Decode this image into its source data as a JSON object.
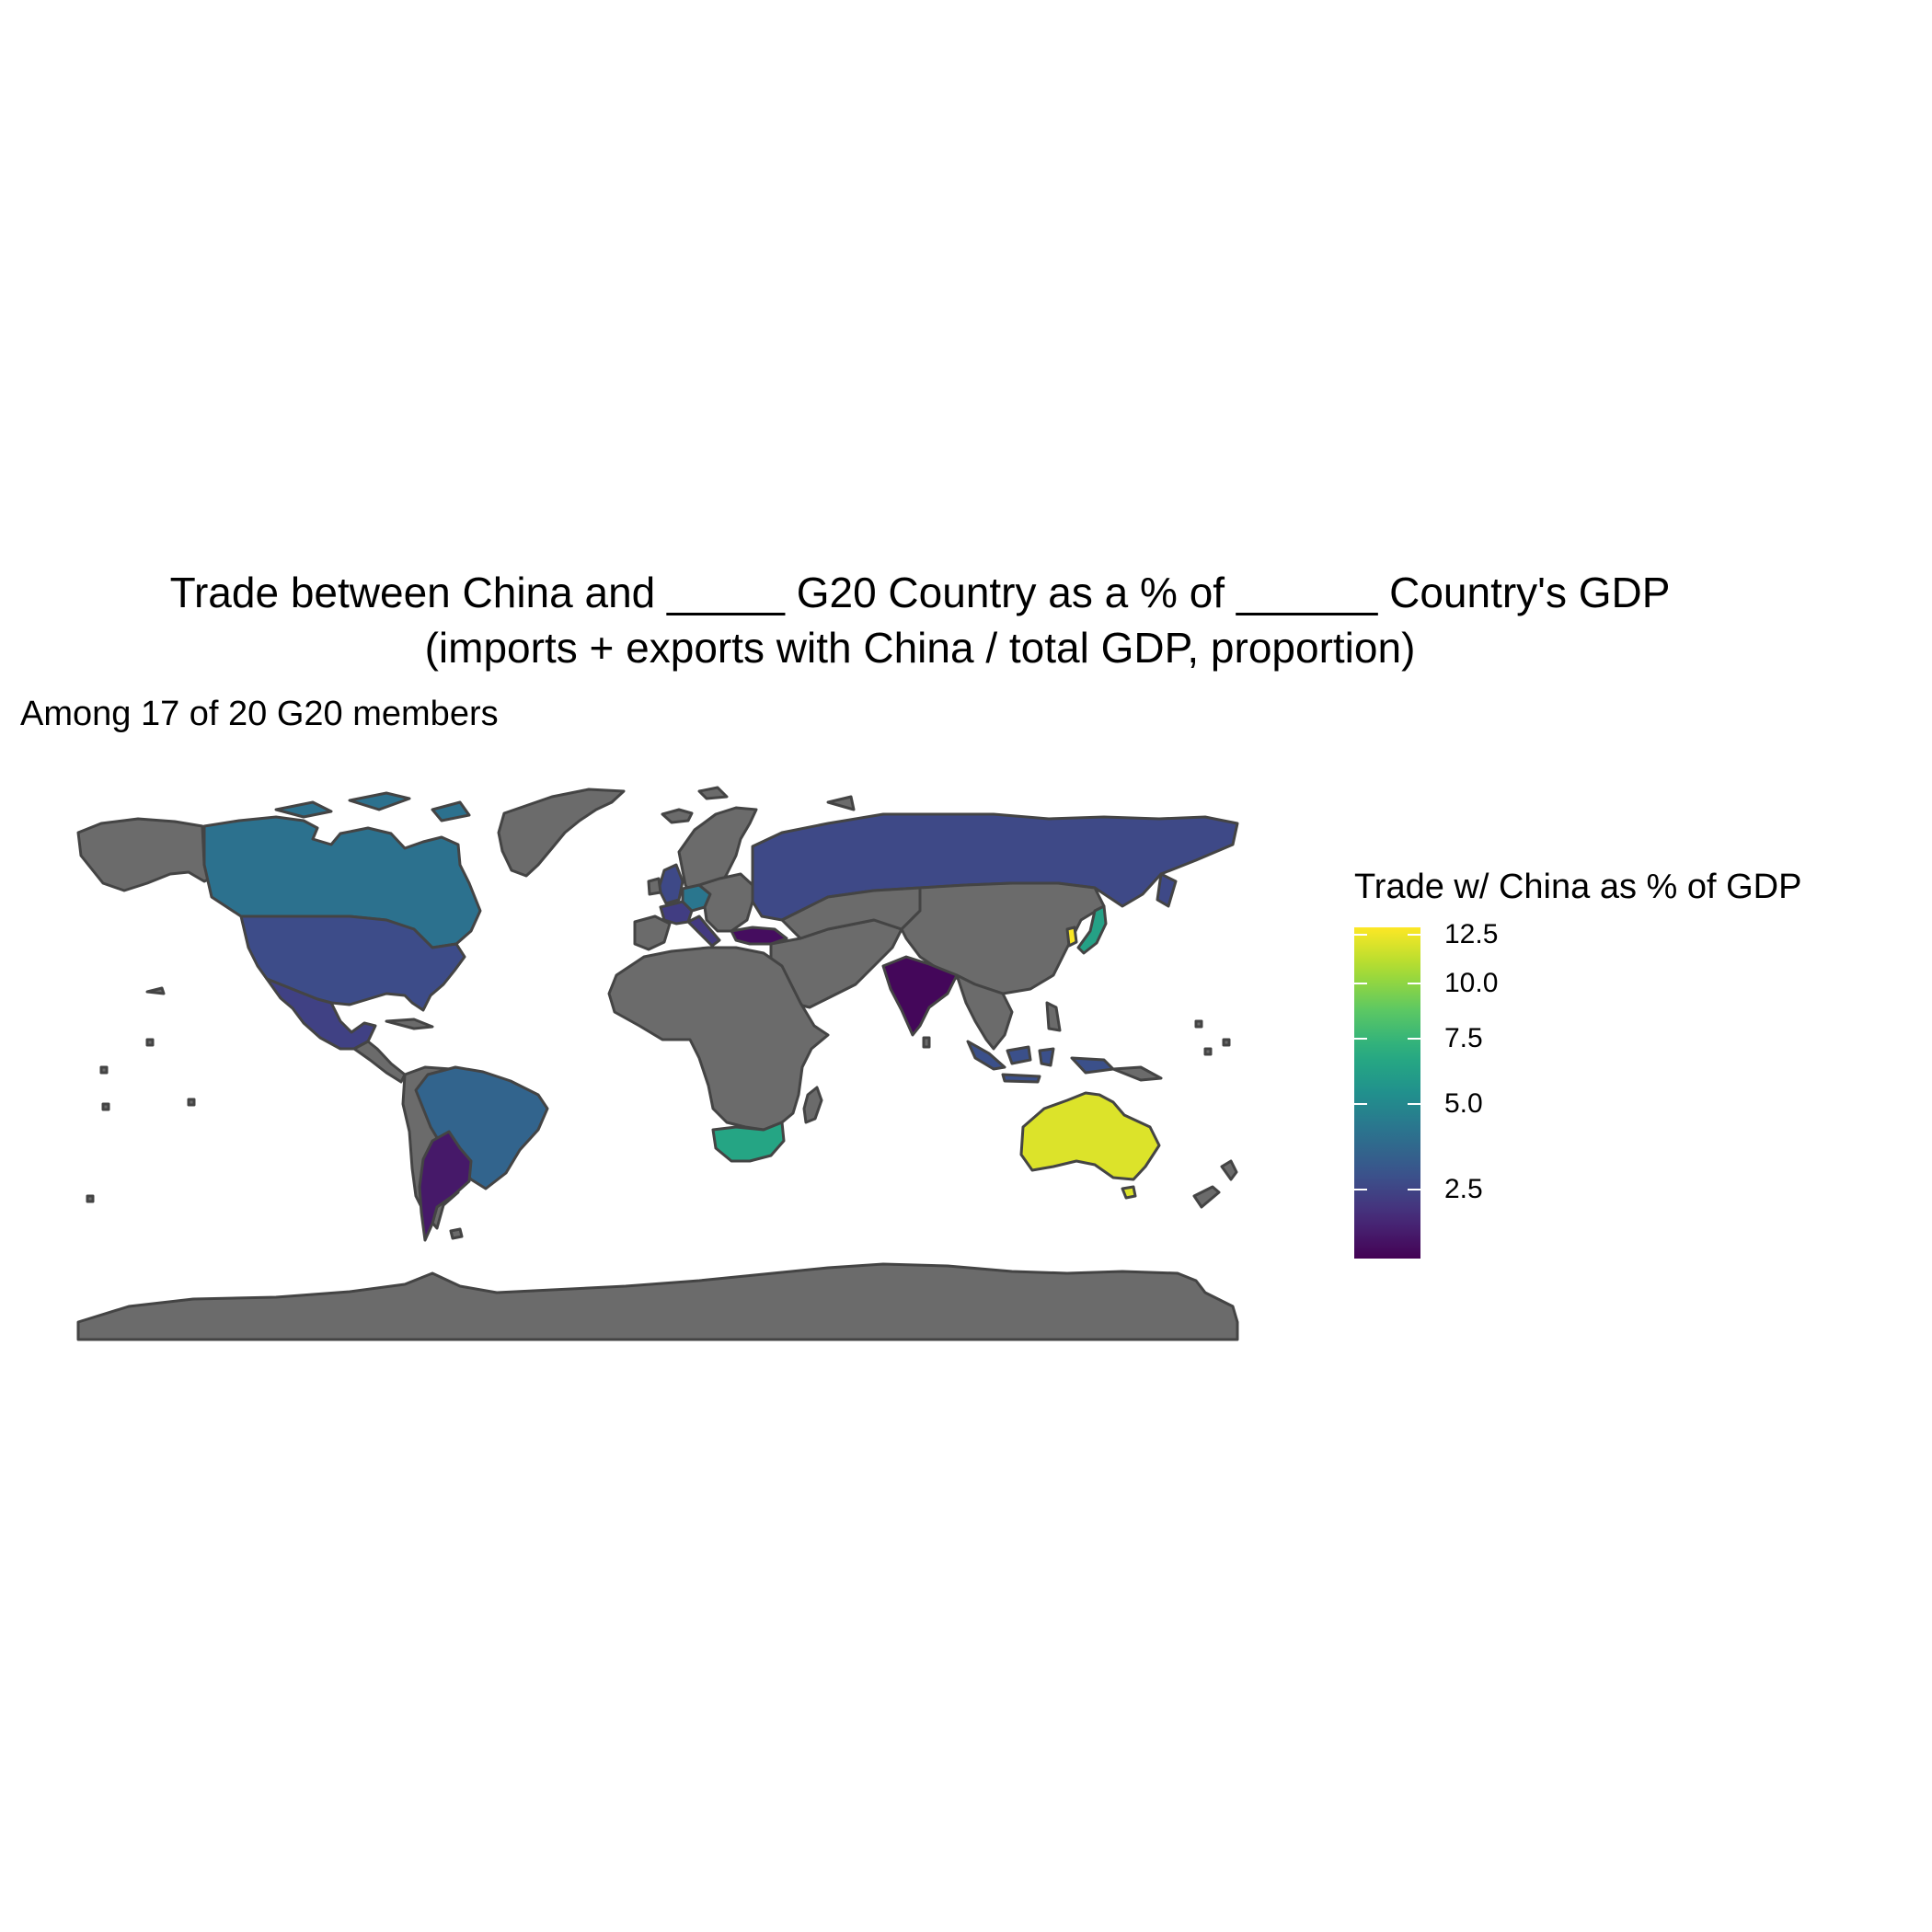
{
  "title_line1": "Trade between China and _____ G20 Country as a % of ______ Country's GDP",
  "title_line2": "(imports + exports with China / total GDP, proportion)",
  "subtitle": "Among 17 of 20 G20 members",
  "legend": {
    "title": "Trade w/ China as % of GDP",
    "range": [
      1.1,
      12.9
    ],
    "ticks": [
      {
        "value": 2.5,
        "label": "2.5"
      },
      {
        "value": 5.0,
        "label": "5.0"
      },
      {
        "value": 7.5,
        "label": "7.5"
      },
      {
        "value": 10.0,
        "label": "10.0"
      },
      {
        "value": 12.5,
        "label": "12.5"
      }
    ],
    "palette": "viridis"
  },
  "colors": {
    "no_data": "#6b6b6b",
    "border": "#444444",
    "background": "#ffffff"
  },
  "chart_data": {
    "type": "choropleth",
    "projection": "equirectangular",
    "value_scale": "sqrt",
    "regions": [
      {
        "country": "Argentina",
        "value": 1.5
      },
      {
        "country": "Australia",
        "value": 12.0
      },
      {
        "country": "Brazil",
        "value": 3.5
      },
      {
        "country": "Canada",
        "value": 4.0
      },
      {
        "country": "France",
        "value": 2.3
      },
      {
        "country": "Germany",
        "value": 4.2
      },
      {
        "country": "India",
        "value": 1.2
      },
      {
        "country": "Indonesia",
        "value": 2.8
      },
      {
        "country": "Italy",
        "value": 2.2
      },
      {
        "country": "Japan",
        "value": 6.3
      },
      {
        "country": "Mexico",
        "value": 2.4
      },
      {
        "country": "Russia",
        "value": 2.6
      },
      {
        "country": "South Africa",
        "value": 6.5
      },
      {
        "country": "South Korea",
        "value": 12.8
      },
      {
        "country": "Turkey",
        "value": 1.3
      },
      {
        "country": "United Kingdom",
        "value": 2.6
      },
      {
        "country": "United States",
        "value": 2.7
      }
    ]
  }
}
